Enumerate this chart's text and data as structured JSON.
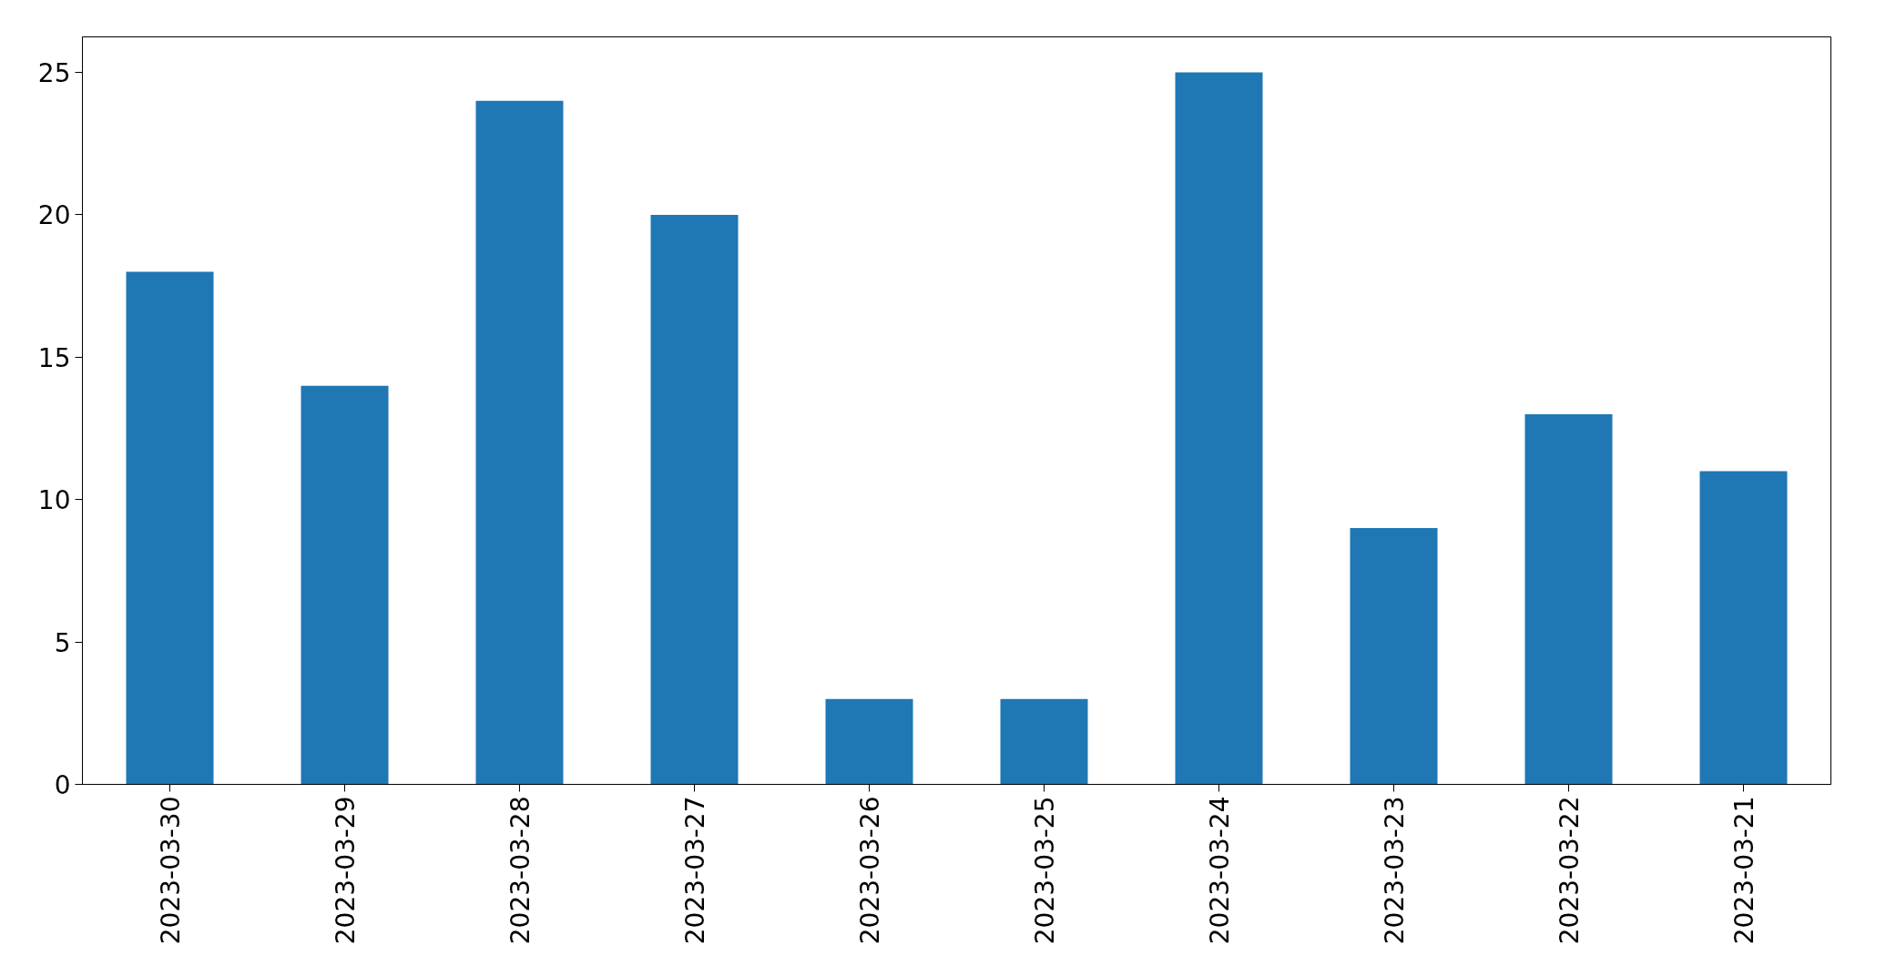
{
  "chart_data": {
    "type": "bar",
    "categories": [
      "2023-03-30",
      "2023-03-29",
      "2023-03-28",
      "2023-03-27",
      "2023-03-26",
      "2023-03-25",
      "2023-03-24",
      "2023-03-23",
      "2023-03-22",
      "2023-03-21"
    ],
    "values": [
      18,
      14,
      24,
      20,
      3,
      3,
      25,
      9,
      13,
      11
    ],
    "color": "#1f77b4",
    "ylim": [
      0,
      26.25
    ],
    "yticks": [
      0,
      5,
      10,
      15,
      20,
      25
    ],
    "grid": false
  }
}
